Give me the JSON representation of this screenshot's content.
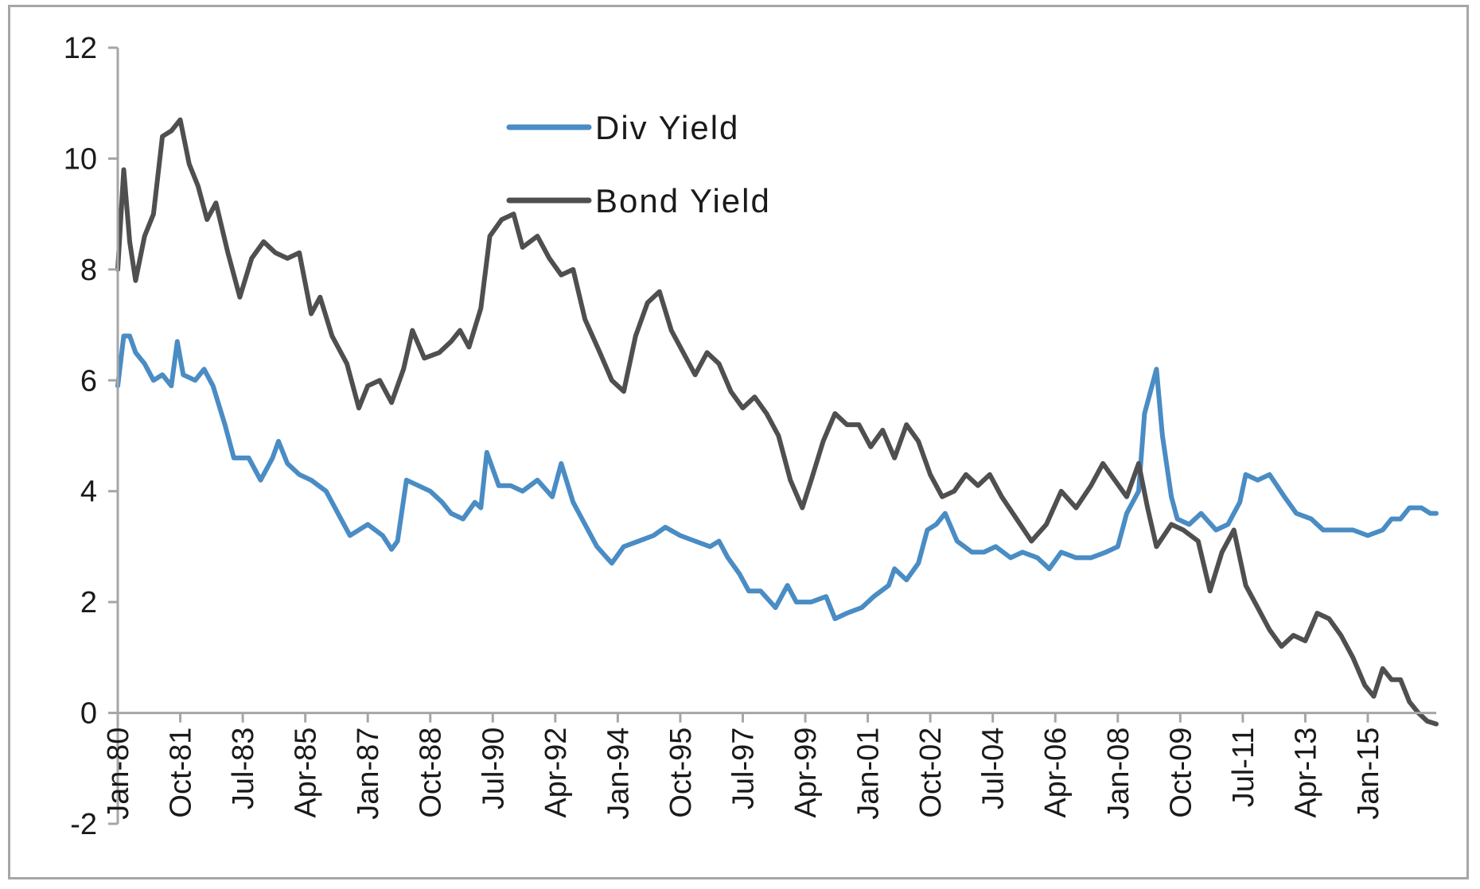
{
  "chart_data": {
    "type": "line",
    "title": "",
    "xlabel": "",
    "ylabel": "",
    "ylim": [
      -2,
      12
    ],
    "y_ticks": [
      -2,
      0,
      2,
      4,
      6,
      8,
      10,
      12
    ],
    "y_tick_labels": [
      "-2",
      "0",
      "2",
      "4",
      "6",
      "8",
      "10",
      "12"
    ],
    "x_range": [
      "1980-01",
      "2016-12"
    ],
    "x_tick_labels": [
      "Jan-80",
      "Oct-81",
      "Jul-83",
      "Apr-85",
      "Jan-87",
      "Oct-88",
      "Jul-90",
      "Apr-92",
      "Jan-94",
      "Oct-95",
      "Jul-97",
      "Apr-99",
      "Jan-01",
      "Oct-02",
      "Jul-04",
      "Apr-06",
      "Jan-08",
      "Oct-09",
      "Jul-11",
      "Apr-13",
      "Jan-15"
    ],
    "x_tick_dates": [
      "1980-01",
      "1981-10",
      "1983-07",
      "1985-04",
      "1987-01",
      "1988-10",
      "1990-07",
      "1992-04",
      "1994-01",
      "1995-10",
      "1997-07",
      "1999-04",
      "2001-01",
      "2002-10",
      "2004-07",
      "2006-04",
      "2008-01",
      "2009-10",
      "2011-07",
      "2013-04",
      "2015-01"
    ],
    "grid": false,
    "legend_position": "top-center",
    "series": [
      {
        "name": "Div Yield",
        "color": "#4a8cc4",
        "points": [
          [
            "1980-01",
            5.9
          ],
          [
            "1980-03",
            6.8
          ],
          [
            "1980-05",
            6.8
          ],
          [
            "1980-07",
            6.5
          ],
          [
            "1980-10",
            6.3
          ],
          [
            "1981-01",
            6.0
          ],
          [
            "1981-04",
            6.1
          ],
          [
            "1981-07",
            5.9
          ],
          [
            "1981-09",
            6.7
          ],
          [
            "1981-11",
            6.1
          ],
          [
            "1982-03",
            6.0
          ],
          [
            "1982-06",
            6.2
          ],
          [
            "1982-09",
            5.9
          ],
          [
            "1983-01",
            5.2
          ],
          [
            "1983-04",
            4.6
          ],
          [
            "1983-09",
            4.6
          ],
          [
            "1984-01",
            4.2
          ],
          [
            "1984-05",
            4.6
          ],
          [
            "1984-07",
            4.9
          ],
          [
            "1984-10",
            4.5
          ],
          [
            "1985-02",
            4.3
          ],
          [
            "1985-06",
            4.2
          ],
          [
            "1985-11",
            4.0
          ],
          [
            "1986-04",
            3.5
          ],
          [
            "1986-07",
            3.2
          ],
          [
            "1987-01",
            3.4
          ],
          [
            "1987-06",
            3.2
          ],
          [
            "1987-09",
            2.95
          ],
          [
            "1987-11",
            3.1
          ],
          [
            "1988-02",
            4.2
          ],
          [
            "1988-06",
            4.1
          ],
          [
            "1988-10",
            4.0
          ],
          [
            "1989-02",
            3.8
          ],
          [
            "1989-05",
            3.6
          ],
          [
            "1989-09",
            3.5
          ],
          [
            "1990-01",
            3.8
          ],
          [
            "1990-03",
            3.7
          ],
          [
            "1990-05",
            4.7
          ],
          [
            "1990-09",
            4.1
          ],
          [
            "1991-01",
            4.1
          ],
          [
            "1991-05",
            4.0
          ],
          [
            "1991-10",
            4.2
          ],
          [
            "1992-03",
            3.9
          ],
          [
            "1992-06",
            4.5
          ],
          [
            "1992-10",
            3.8
          ],
          [
            "1993-02",
            3.4
          ],
          [
            "1993-06",
            3.0
          ],
          [
            "1993-11",
            2.7
          ],
          [
            "1994-03",
            3.0
          ],
          [
            "1994-08",
            3.1
          ],
          [
            "1995-01",
            3.2
          ],
          [
            "1995-05",
            3.35
          ],
          [
            "1995-10",
            3.2
          ],
          [
            "1996-03",
            3.1
          ],
          [
            "1996-08",
            3.0
          ],
          [
            "1996-11",
            3.1
          ],
          [
            "1997-02",
            2.8
          ],
          [
            "1997-06",
            2.5
          ],
          [
            "1997-09",
            2.2
          ],
          [
            "1998-01",
            2.2
          ],
          [
            "1998-06",
            1.9
          ],
          [
            "1998-10",
            2.3
          ],
          [
            "1999-01",
            2.0
          ],
          [
            "1999-06",
            2.0
          ],
          [
            "1999-11",
            2.1
          ],
          [
            "2000-02",
            1.7
          ],
          [
            "2000-06",
            1.8
          ],
          [
            "2000-11",
            1.9
          ],
          [
            "2001-03",
            2.1
          ],
          [
            "2001-08",
            2.3
          ],
          [
            "2001-10",
            2.6
          ],
          [
            "2002-02",
            2.4
          ],
          [
            "2002-06",
            2.7
          ],
          [
            "2002-09",
            3.3
          ],
          [
            "2002-12",
            3.4
          ],
          [
            "2003-03",
            3.6
          ],
          [
            "2003-07",
            3.1
          ],
          [
            "2003-12",
            2.9
          ],
          [
            "2004-04",
            2.9
          ],
          [
            "2004-08",
            3.0
          ],
          [
            "2005-01",
            2.8
          ],
          [
            "2005-05",
            2.9
          ],
          [
            "2005-10",
            2.8
          ],
          [
            "2006-02",
            2.6
          ],
          [
            "2006-06",
            2.9
          ],
          [
            "2006-11",
            2.8
          ],
          [
            "2007-04",
            2.8
          ],
          [
            "2007-09",
            2.9
          ],
          [
            "2008-01",
            3.0
          ],
          [
            "2008-04",
            3.6
          ],
          [
            "2008-08",
            4.0
          ],
          [
            "2008-10",
            5.4
          ],
          [
            "2008-12",
            5.8
          ],
          [
            "2009-02",
            6.2
          ],
          [
            "2009-04",
            5.0
          ],
          [
            "2009-07",
            3.9
          ],
          [
            "2009-09",
            3.5
          ],
          [
            "2010-01",
            3.4
          ],
          [
            "2010-05",
            3.6
          ],
          [
            "2010-10",
            3.3
          ],
          [
            "2011-02",
            3.4
          ],
          [
            "2011-06",
            3.8
          ],
          [
            "2011-08",
            4.3
          ],
          [
            "2011-12",
            4.2
          ],
          [
            "2012-04",
            4.3
          ],
          [
            "2012-09",
            3.9
          ],
          [
            "2013-01",
            3.6
          ],
          [
            "2013-06",
            3.5
          ],
          [
            "2013-10",
            3.3
          ],
          [
            "2014-03",
            3.3
          ],
          [
            "2014-08",
            3.3
          ],
          [
            "2015-01",
            3.2
          ],
          [
            "2015-06",
            3.3
          ],
          [
            "2015-09",
            3.5
          ],
          [
            "2015-12",
            3.5
          ],
          [
            "2016-03",
            3.7
          ],
          [
            "2016-07",
            3.7
          ],
          [
            "2016-10",
            3.6
          ],
          [
            "2016-12",
            3.6
          ]
        ]
      },
      {
        "name": "Bond Yield",
        "color": "#4f4f4f",
        "points": [
          [
            "1980-01",
            8.0
          ],
          [
            "1980-03",
            9.8
          ],
          [
            "1980-05",
            8.5
          ],
          [
            "1980-07",
            7.8
          ],
          [
            "1980-10",
            8.6
          ],
          [
            "1981-01",
            9.0
          ],
          [
            "1981-04",
            10.4
          ],
          [
            "1981-07",
            10.5
          ],
          [
            "1981-10",
            10.7
          ],
          [
            "1982-01",
            9.9
          ],
          [
            "1982-04",
            9.5
          ],
          [
            "1982-07",
            8.9
          ],
          [
            "1982-10",
            9.2
          ],
          [
            "1983-02",
            8.3
          ],
          [
            "1983-06",
            7.5
          ],
          [
            "1983-10",
            8.2
          ],
          [
            "1984-02",
            8.5
          ],
          [
            "1984-06",
            8.3
          ],
          [
            "1984-10",
            8.2
          ],
          [
            "1985-02",
            8.3
          ],
          [
            "1985-06",
            7.2
          ],
          [
            "1985-09",
            7.5
          ],
          [
            "1986-01",
            6.8
          ],
          [
            "1986-06",
            6.3
          ],
          [
            "1986-10",
            5.5
          ],
          [
            "1987-01",
            5.9
          ],
          [
            "1987-05",
            6.0
          ],
          [
            "1987-09",
            5.6
          ],
          [
            "1988-01",
            6.2
          ],
          [
            "1988-04",
            6.9
          ],
          [
            "1988-08",
            6.4
          ],
          [
            "1989-01",
            6.5
          ],
          [
            "1989-05",
            6.7
          ],
          [
            "1989-08",
            6.9
          ],
          [
            "1989-11",
            6.6
          ],
          [
            "1990-03",
            7.3
          ],
          [
            "1990-06",
            8.6
          ],
          [
            "1990-10",
            8.9
          ],
          [
            "1991-02",
            9.0
          ],
          [
            "1991-05",
            8.4
          ],
          [
            "1991-10",
            8.6
          ],
          [
            "1992-02",
            8.2
          ],
          [
            "1992-06",
            7.9
          ],
          [
            "1992-10",
            8.0
          ],
          [
            "1993-02",
            7.1
          ],
          [
            "1993-07",
            6.5
          ],
          [
            "1993-11",
            6.0
          ],
          [
            "1994-03",
            5.8
          ],
          [
            "1994-07",
            6.8
          ],
          [
            "1994-11",
            7.4
          ],
          [
            "1995-03",
            7.6
          ],
          [
            "1995-07",
            6.9
          ],
          [
            "1995-11",
            6.5
          ],
          [
            "1996-03",
            6.1
          ],
          [
            "1996-07",
            6.5
          ],
          [
            "1996-11",
            6.3
          ],
          [
            "1997-03",
            5.8
          ],
          [
            "1997-07",
            5.5
          ],
          [
            "1997-11",
            5.7
          ],
          [
            "1998-03",
            5.4
          ],
          [
            "1998-07",
            5.0
          ],
          [
            "1998-11",
            4.2
          ],
          [
            "1999-03",
            3.7
          ],
          [
            "1999-06",
            4.2
          ],
          [
            "1999-10",
            4.9
          ],
          [
            "2000-02",
            5.4
          ],
          [
            "2000-06",
            5.2
          ],
          [
            "2000-10",
            5.2
          ],
          [
            "2001-02",
            4.8
          ],
          [
            "2001-06",
            5.1
          ],
          [
            "2001-10",
            4.6
          ],
          [
            "2002-02",
            5.2
          ],
          [
            "2002-06",
            4.9
          ],
          [
            "2002-10",
            4.3
          ],
          [
            "2003-02",
            3.9
          ],
          [
            "2003-06",
            4.0
          ],
          [
            "2003-10",
            4.3
          ],
          [
            "2004-02",
            4.1
          ],
          [
            "2004-06",
            4.3
          ],
          [
            "2004-10",
            3.9
          ],
          [
            "2005-03",
            3.5
          ],
          [
            "2005-08",
            3.1
          ],
          [
            "2006-01",
            3.4
          ],
          [
            "2006-06",
            4.0
          ],
          [
            "2006-11",
            3.7
          ],
          [
            "2007-04",
            4.1
          ],
          [
            "2007-08",
            4.5
          ],
          [
            "2007-12",
            4.2
          ],
          [
            "2008-04",
            3.9
          ],
          [
            "2008-08",
            4.5
          ],
          [
            "2008-11",
            3.7
          ],
          [
            "2009-02",
            3.0
          ],
          [
            "2009-07",
            3.4
          ],
          [
            "2009-11",
            3.3
          ],
          [
            "2010-04",
            3.1
          ],
          [
            "2010-08",
            2.2
          ],
          [
            "2010-12",
            2.9
          ],
          [
            "2011-04",
            3.3
          ],
          [
            "2011-08",
            2.3
          ],
          [
            "2011-12",
            1.9
          ],
          [
            "2012-04",
            1.5
          ],
          [
            "2012-08",
            1.2
          ],
          [
            "2012-12",
            1.4
          ],
          [
            "2013-04",
            1.3
          ],
          [
            "2013-08",
            1.8
          ],
          [
            "2013-12",
            1.7
          ],
          [
            "2014-04",
            1.4
          ],
          [
            "2014-08",
            1.0
          ],
          [
            "2014-12",
            0.5
          ],
          [
            "2015-03",
            0.3
          ],
          [
            "2015-06",
            0.8
          ],
          [
            "2015-09",
            0.6
          ],
          [
            "2015-12",
            0.6
          ],
          [
            "2016-03",
            0.2
          ],
          [
            "2016-06",
            0.0
          ],
          [
            "2016-09",
            -0.15
          ],
          [
            "2016-12",
            -0.2
          ]
        ]
      }
    ]
  }
}
